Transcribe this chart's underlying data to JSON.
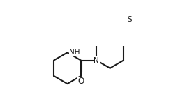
{
  "bg_color": "#ffffff",
  "line_color": "#1a1a1a",
  "line_width": 1.5,
  "font_size": 7.5,
  "NH_label": "NH",
  "N_label": "N",
  "S_label": "S",
  "O_label": "O",
  "xlim": [
    0.0,
    5.8
  ],
  "ylim": [
    -0.3,
    2.6
  ]
}
